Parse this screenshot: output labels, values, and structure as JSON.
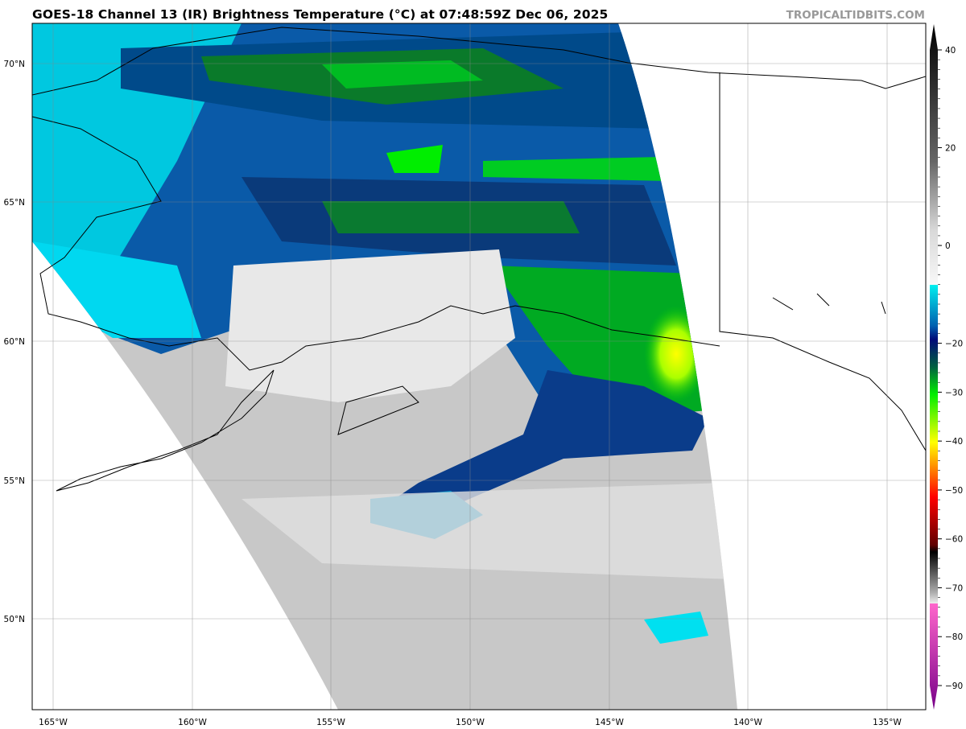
{
  "header": {
    "title": "GOES-18 Channel 13 (IR) Brightness Temperature (°C) at 07:48:59Z Dec 06, 2025",
    "brand": "TROPICALTIDBITS.COM"
  },
  "map": {
    "region": "Alaska / Gulf of Alaska",
    "lat_labels": [
      "70°N",
      "65°N",
      "60°N",
      "55°N",
      "50°N"
    ],
    "lon_labels": [
      "165°W",
      "160°W",
      "155°W",
      "150°W",
      "145°W",
      "140°W",
      "135°W"
    ],
    "lat_values": [
      70,
      65,
      60,
      55,
      50
    ],
    "lon_values": [
      -165,
      -160,
      -155,
      -150,
      -145,
      -140,
      -135
    ]
  },
  "colorbar": {
    "unit": "°C",
    "range": [
      -90,
      40
    ],
    "tick_labels": [
      "40",
      "20",
      "0",
      "−20",
      "−30",
      "−40",
      "−50",
      "−60",
      "−70",
      "−80",
      "−90"
    ],
    "tick_values": [
      40,
      20,
      0,
      -20,
      -30,
      -40,
      -50,
      -60,
      -70,
      -80,
      -90
    ],
    "colors": {
      "warm_top": "#000000",
      "zero": "#d8d8d8",
      "cold_start": "#00e8f0",
      "navy": "#000a78",
      "green": "#00ee00",
      "yellow": "#ffff00",
      "orange": "#ff8000",
      "red": "#ff0000",
      "pink": "#ff66cc",
      "purple": "#770088"
    }
  }
}
